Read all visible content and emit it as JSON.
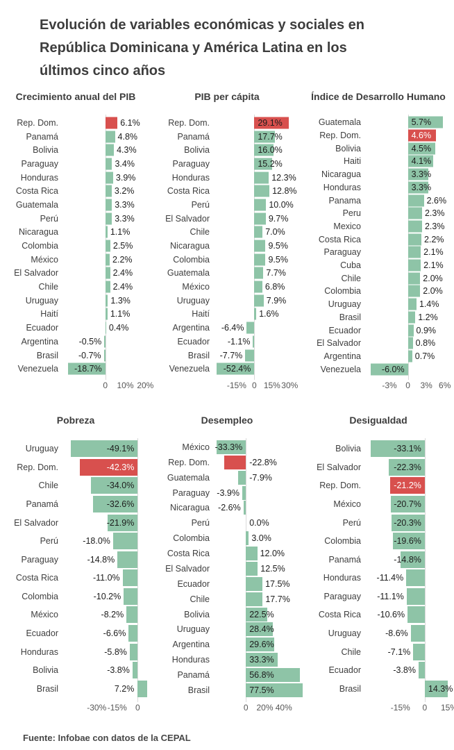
{
  "page": {
    "title": "Evolución de variables económicas y sociales en República Dominicana y América Latina en los últimos cinco años",
    "source": "Fuente: Infobae con datos de la CEPAL"
  },
  "colors": {
    "green": "#8ec4a7",
    "red": "#d8504e",
    "value_text": "#1c1c1c",
    "value_text_white": "#ffffff",
    "axis_text": "#565656",
    "zero_line": "#d9d9d9"
  },
  "chart_data": [
    {
      "type": "bar",
      "orientation": "horizontal",
      "title": "Crecimiento anual del PIB",
      "unit": "%",
      "xlim": [
        -20,
        23
      ],
      "highlight": "Rep. Dom.",
      "ticks": [
        {
          "v": 0,
          "label": "0"
        },
        {
          "v": 10,
          "label": "10%"
        },
        {
          "v": 20,
          "label": "20%"
        }
      ],
      "rows": [
        {
          "label": "Rep. Dom.",
          "value": 6.1,
          "display": "6.1%",
          "pos": "out",
          "red": true
        },
        {
          "label": "Panamá",
          "value": 4.8,
          "display": "4.8%",
          "pos": "out"
        },
        {
          "label": "Bolivia",
          "value": 4.3,
          "display": "4.3%",
          "pos": "out"
        },
        {
          "label": "Paraguay",
          "value": 3.4,
          "display": "3.4%",
          "pos": "out"
        },
        {
          "label": "Honduras",
          "value": 3.9,
          "display": "3.9%",
          "pos": "out"
        },
        {
          "label": "Costa Rica",
          "value": 3.2,
          "display": "3.2%",
          "pos": "out"
        },
        {
          "label": "Guatemala",
          "value": 3.3,
          "display": "3.3%",
          "pos": "out"
        },
        {
          "label": "Perú",
          "value": 3.3,
          "display": "3.3%",
          "pos": "out"
        },
        {
          "label": "Nicaragua",
          "value": 1.1,
          "display": "1.1%",
          "pos": "out"
        },
        {
          "label": "Colombia",
          "value": 2.5,
          "display": "2.5%",
          "pos": "out"
        },
        {
          "label": "México",
          "value": 2.2,
          "display": "2.2%",
          "pos": "out"
        },
        {
          "label": "El Salvador",
          "value": 2.4,
          "display": "2.4%",
          "pos": "out"
        },
        {
          "label": "Chile",
          "value": 2.4,
          "display": "2.4%",
          "pos": "out"
        },
        {
          "label": "Uruguay",
          "value": 1.3,
          "display": "1.3%",
          "pos": "out"
        },
        {
          "label": "Haití",
          "value": 1.1,
          "display": "1.1%",
          "pos": "out"
        },
        {
          "label": "Ecuador",
          "value": 0.4,
          "display": "0.4%",
          "pos": "out"
        },
        {
          "label": "Argentina",
          "value": -0.5,
          "display": "-0.5%",
          "pos": "out"
        },
        {
          "label": "Brasil",
          "value": -0.7,
          "display": "-0.7%",
          "pos": "out"
        },
        {
          "label": "Venezuela",
          "value": -18.7,
          "display": "-18.7%",
          "pos": "in"
        }
      ]
    },
    {
      "type": "bar",
      "orientation": "horizontal",
      "title": "PIB per cápita",
      "unit": "%",
      "xlim": [
        -32,
        41
      ],
      "highlight": "Rep. Dom.",
      "ticks": [
        {
          "v": -15,
          "label": "-15%"
        },
        {
          "v": 0,
          "label": "0"
        },
        {
          "v": 15,
          "label": "15%"
        },
        {
          "v": 30,
          "label": "30%"
        }
      ],
      "rows": [
        {
          "label": "Rep. Dom.",
          "value": 29.1,
          "display": "29.1%",
          "pos": "in",
          "red": true
        },
        {
          "label": "Panamá",
          "value": 17.7,
          "display": "17.7%",
          "pos": "in"
        },
        {
          "label": "Bolivia",
          "value": 16.0,
          "display": "16.0%",
          "pos": "in"
        },
        {
          "label": "Paraguay",
          "value": 15.2,
          "display": "15.2%",
          "pos": "in"
        },
        {
          "label": "Honduras",
          "value": 12.3,
          "display": "12.3%",
          "pos": "out"
        },
        {
          "label": "Costa Rica",
          "value": 12.8,
          "display": "12.8%",
          "pos": "out"
        },
        {
          "label": "Perú",
          "value": 10.0,
          "display": "10.0%",
          "pos": "out"
        },
        {
          "label": "El Salvador",
          "value": 9.7,
          "display": "9.7%",
          "pos": "out"
        },
        {
          "label": "Chile",
          "value": 7.0,
          "display": "7.0%",
          "pos": "out"
        },
        {
          "label": "Nicaragua",
          "value": 9.5,
          "display": "9.5%",
          "pos": "out"
        },
        {
          "label": "Colombia",
          "value": 9.5,
          "display": "9.5%",
          "pos": "out"
        },
        {
          "label": "Guatemala",
          "value": 7.7,
          "display": "7.7%",
          "pos": "out"
        },
        {
          "label": "México",
          "value": 6.8,
          "display": "6.8%",
          "pos": "out"
        },
        {
          "label": "Uruguay",
          "value": 7.9,
          "display": "7.9%",
          "pos": "out"
        },
        {
          "label": "Haití",
          "value": 1.6,
          "display": "1.6%",
          "pos": "out"
        },
        {
          "label": "Argentina",
          "value": -6.4,
          "display": "-6.4%",
          "pos": "out"
        },
        {
          "label": "Ecuador",
          "value": -1.1,
          "display": "-1.1%",
          "pos": "out"
        },
        {
          "label": "Brasil",
          "value": -7.7,
          "display": "-7.7%",
          "pos": "out"
        },
        {
          "label": "Venezuela",
          "value": -52.4,
          "display": "-52.4%",
          "pos": "in"
        }
      ]
    },
    {
      "type": "bar",
      "orientation": "horizontal",
      "title": "Índice de Desarrollo Humano",
      "unit": "%",
      "xlim": [
        -6.5,
        7.5
      ],
      "highlight": "Rep. Dom.",
      "ticks": [
        {
          "v": -3,
          "label": "-3%"
        },
        {
          "v": 0,
          "label": "0"
        },
        {
          "v": 3,
          "label": "3%"
        },
        {
          "v": 6,
          "label": "6%"
        }
      ],
      "rows": [
        {
          "label": "Guatemala",
          "value": 5.7,
          "display": "5.7%",
          "pos": "in"
        },
        {
          "label": "Rep. Dom.",
          "value": 4.6,
          "display": "4.6%",
          "pos": "in",
          "red": true,
          "white": true
        },
        {
          "label": "Bolivia",
          "value": 4.5,
          "display": "4.5%",
          "pos": "in"
        },
        {
          "label": "Haiti",
          "value": 4.1,
          "display": "4.1%",
          "pos": "in"
        },
        {
          "label": "Nicaragua",
          "value": 3.3,
          "display": "3.3%",
          "pos": "in"
        },
        {
          "label": "Honduras",
          "value": 3.3,
          "display": "3.3%",
          "pos": "in"
        },
        {
          "label": "Panama",
          "value": 2.6,
          "display": "2.6%",
          "pos": "out"
        },
        {
          "label": "Peru",
          "value": 2.3,
          "display": "2.3%",
          "pos": "out"
        },
        {
          "label": "Mexico",
          "value": 2.3,
          "display": "2.3%",
          "pos": "out"
        },
        {
          "label": "Costa Rica",
          "value": 2.2,
          "display": "2.2%",
          "pos": "out"
        },
        {
          "label": "Paraguay",
          "value": 2.1,
          "display": "2.1%",
          "pos": "out"
        },
        {
          "label": "Cuba",
          "value": 2.1,
          "display": "2.1%",
          "pos": "out"
        },
        {
          "label": "Chile",
          "value": 2.0,
          "display": "2.0%",
          "pos": "out"
        },
        {
          "label": "Colombia",
          "value": 2.0,
          "display": "2.0%",
          "pos": "out"
        },
        {
          "label": "Uruguay",
          "value": 1.4,
          "display": "1.4%",
          "pos": "out"
        },
        {
          "label": "Brasil",
          "value": 1.2,
          "display": "1.2%",
          "pos": "out"
        },
        {
          "label": "Ecuador",
          "value": 0.9,
          "display": "0.9%",
          "pos": "out"
        },
        {
          "label": "El Salvador",
          "value": 0.8,
          "display": "0.8%",
          "pos": "out"
        },
        {
          "label": "Argentina",
          "value": 0.7,
          "display": "0.7%",
          "pos": "out"
        },
        {
          "label": "Venezuela",
          "value": -6.0,
          "display": "-6.0%",
          "pos": "in"
        }
      ]
    },
    {
      "type": "bar",
      "orientation": "horizontal",
      "title": "Pobreza",
      "unit": "%",
      "xlim": [
        -53,
        10
      ],
      "highlight": "Rep. Dom.",
      "ticks": [
        {
          "v": -30,
          "label": "-30%"
        },
        {
          "v": -15,
          "label": "-15%"
        },
        {
          "v": 0,
          "label": "0"
        }
      ],
      "rows": [
        {
          "label": "Uruguay",
          "value": -49.1,
          "display": "-49.1%",
          "pos": "in"
        },
        {
          "label": "Rep. Dom.",
          "value": -42.3,
          "display": "-42.3%",
          "pos": "in",
          "red": true,
          "white": true
        },
        {
          "label": "Chile",
          "value": -34.0,
          "display": "-34.0%",
          "pos": "in"
        },
        {
          "label": "Panamá",
          "value": -32.6,
          "display": "-32.6%",
          "pos": "in"
        },
        {
          "label": "El Salvador",
          "value": -21.9,
          "display": "-21.9%",
          "pos": "in"
        },
        {
          "label": "Perú",
          "value": -18.0,
          "display": "-18.0%",
          "pos": "out"
        },
        {
          "label": "Paraguay",
          "value": -14.8,
          "display": "-14.8%",
          "pos": "out"
        },
        {
          "label": "Costa Rica",
          "value": -11.0,
          "display": "-11.0%",
          "pos": "out"
        },
        {
          "label": "Colombia",
          "value": -10.2,
          "display": "-10.2%",
          "pos": "out"
        },
        {
          "label": "México",
          "value": -8.2,
          "display": "-8.2%",
          "pos": "out"
        },
        {
          "label": "Ecuador",
          "value": -6.6,
          "display": "-6.6%",
          "pos": "out"
        },
        {
          "label": "Honduras",
          "value": -5.8,
          "display": "-5.8%",
          "pos": "out"
        },
        {
          "label": "Bolivia",
          "value": -3.8,
          "display": "-3.8%",
          "pos": "out"
        },
        {
          "label": "Brasil",
          "value": 7.2,
          "display": "7.2%",
          "pos": "zl"
        }
      ]
    },
    {
      "type": "bar",
      "orientation": "horizontal",
      "title": "Desempleo",
      "unit": "%",
      "xlim": [
        -31,
        60
      ],
      "highlight": "Rep. Dom.",
      "ticks": [
        {
          "v": 0,
          "label": "0"
        },
        {
          "v": 20,
          "label": "20%"
        },
        {
          "v": 40,
          "label": "40%"
        }
      ],
      "rows": [
        {
          "label": "México",
          "value": -33.3,
          "display": "-33.3%",
          "pos": "in"
        },
        {
          "label": "Rep. Dom.",
          "value": -22.8,
          "display": "-22.8%",
          "pos": "zr",
          "red": true
        },
        {
          "label": "Guatemala",
          "value": -7.9,
          "display": "-7.9%",
          "pos": "zr"
        },
        {
          "label": "Paraguay",
          "value": -3.9,
          "display": "-3.9%",
          "pos": "out"
        },
        {
          "label": "Nicaragua",
          "value": -2.6,
          "display": "-2.6%",
          "pos": "out"
        },
        {
          "label": "Perú",
          "value": 0.0,
          "display": "0.0%",
          "pos": "zr"
        },
        {
          "label": "Colombia",
          "value": 3.0,
          "display": "3.0%",
          "pos": "out"
        },
        {
          "label": "Costa Rica",
          "value": 12.0,
          "display": "12.0%",
          "pos": "out"
        },
        {
          "label": "El Salvador",
          "value": 12.5,
          "display": "12.5%",
          "pos": "out"
        },
        {
          "label": "Ecuador",
          "value": 17.5,
          "display": "17.5%",
          "pos": "out"
        },
        {
          "label": "Chile",
          "value": 17.7,
          "display": "17.7%",
          "pos": "out"
        },
        {
          "label": "Bolivia",
          "value": 22.5,
          "display": "22.5%",
          "pos": "in"
        },
        {
          "label": "Uruguay",
          "value": 28.4,
          "display": "28.4%",
          "pos": "in"
        },
        {
          "label": "Argentina",
          "value": 29.6,
          "display": "29.6%",
          "pos": "in"
        },
        {
          "label": "Honduras",
          "value": 33.3,
          "display": "33.3%",
          "pos": "in"
        },
        {
          "label": "Panamá",
          "value": 56.8,
          "display": "56.8%",
          "pos": "in"
        },
        {
          "label": "Brasil",
          "value": 77.5,
          "display": "77.5%",
          "pos": "in"
        }
      ]
    },
    {
      "type": "bar",
      "orientation": "horizontal",
      "title": "Desigualdad",
      "unit": "%",
      "xlim": [
        -35,
        18
      ],
      "highlight": "Rep. Dom.",
      "ticks": [
        {
          "v": -15,
          "label": "-15%"
        },
        {
          "v": 0,
          "label": "0"
        },
        {
          "v": 15,
          "label": "15%"
        }
      ],
      "rows": [
        {
          "label": "Bolivia",
          "value": -33.1,
          "display": "-33.1%",
          "pos": "in"
        },
        {
          "label": "El Salvador",
          "value": -22.3,
          "display": "-22.3%",
          "pos": "in"
        },
        {
          "label": "Rep. Dom.",
          "value": -21.2,
          "display": "-21.2%",
          "pos": "in",
          "red": true,
          "white": true
        },
        {
          "label": "México",
          "value": -20.7,
          "display": "-20.7%",
          "pos": "in"
        },
        {
          "label": "Perú",
          "value": -20.3,
          "display": "-20.3%",
          "pos": "in"
        },
        {
          "label": "Colombia",
          "value": -19.6,
          "display": "-19.6%",
          "pos": "in"
        },
        {
          "label": "Panamá",
          "value": -14.8,
          "display": "-14.8%",
          "pos": "in"
        },
        {
          "label": "Honduras",
          "value": -11.4,
          "display": "-11.4%",
          "pos": "out"
        },
        {
          "label": "Paraguay",
          "value": -11.1,
          "display": "-11.1%",
          "pos": "out"
        },
        {
          "label": "Costa Rica",
          "value": -10.6,
          "display": "-10.6%",
          "pos": "out"
        },
        {
          "label": "Uruguay",
          "value": -8.6,
          "display": "-8.6%",
          "pos": "out"
        },
        {
          "label": "Chile",
          "value": -7.1,
          "display": "-7.1%",
          "pos": "out"
        },
        {
          "label": "Ecuador",
          "value": -3.8,
          "display": "-3.8%",
          "pos": "out"
        },
        {
          "label": "Brasil",
          "value": 14.3,
          "display": "14.3%",
          "pos": "in"
        }
      ]
    }
  ]
}
